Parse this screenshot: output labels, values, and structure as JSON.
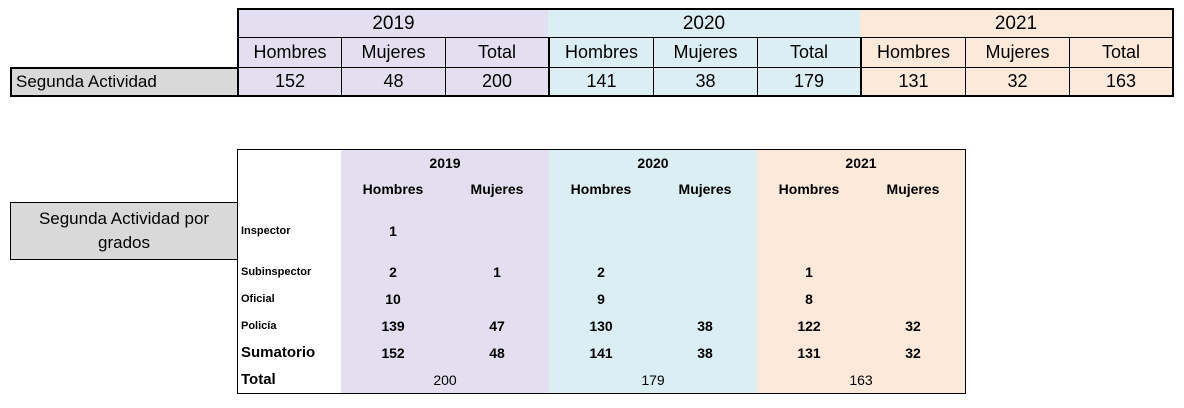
{
  "table1": {
    "years": [
      "2019",
      "2020",
      "2021"
    ],
    "subheaders": [
      "Hombres",
      "Mujeres",
      "Total"
    ],
    "row_label": "Segunda Actividad",
    "values": {
      "2019": {
        "hombres": "152",
        "mujeres": "48",
        "total": "200"
      },
      "2020": {
        "hombres": "141",
        "mujeres": "38",
        "total": "179"
      },
      "2021": {
        "hombres": "131",
        "mujeres": "32",
        "total": "163"
      }
    }
  },
  "table2": {
    "years": [
      "2019",
      "2020",
      "2021"
    ],
    "subheaders": [
      "Hombres",
      "Mujeres"
    ],
    "label": "Segunda Actividad por grados",
    "rows": [
      {
        "name": "Inspector",
        "h2019": "1",
        "m2019": "",
        "h2020": "",
        "m2020": "",
        "h2021": "",
        "m2021": ""
      },
      {
        "name": "Subinspector",
        "h2019": "2",
        "m2019": "1",
        "h2020": "2",
        "m2020": "",
        "h2021": "1",
        "m2021": ""
      },
      {
        "name": "Oficial",
        "h2019": "10",
        "m2019": "",
        "h2020": "9",
        "m2020": "",
        "h2021": "8",
        "m2021": ""
      },
      {
        "name": "Policía",
        "h2019": "139",
        "m2019": "47",
        "h2020": "130",
        "m2020": "38",
        "h2021": "122",
        "m2021": "32"
      }
    ],
    "sumatorio": {
      "name": "Sumatorio",
      "h2019": "152",
      "m2019": "48",
      "h2020": "141",
      "m2020": "38",
      "h2021": "131",
      "m2021": "32"
    },
    "total": {
      "name": "Total",
      "2019": "200",
      "2020": "179",
      "2021": "163"
    }
  },
  "colors": {
    "y2019": "#e4dff0",
    "y2020": "#daeef3",
    "y2021": "#fde9d9",
    "label_bg": "#d9d9d9"
  }
}
